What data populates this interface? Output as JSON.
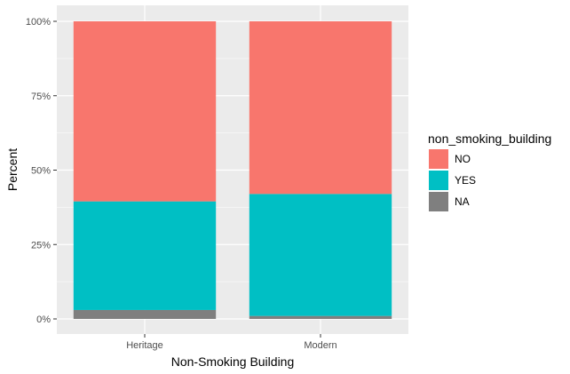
{
  "chart_data": {
    "type": "bar",
    "stacked": true,
    "categories": [
      "Heritage",
      "Modern"
    ],
    "series": [
      {
        "name": "NO",
        "color": "#F8766D",
        "values": [
          60.5,
          58.0
        ]
      },
      {
        "name": "YES",
        "color": "#00BFC4",
        "values": [
          36.5,
          41.0
        ]
      },
      {
        "name": "NA",
        "color": "#7F7F7F",
        "values": [
          3.0,
          1.0
        ]
      }
    ],
    "stack_order": [
      "NA",
      "YES",
      "NO"
    ],
    "xlabel": "Non-Smoking Building",
    "ylabel": "Percent",
    "ylim": [
      0,
      100
    ],
    "yticks": [
      0,
      25,
      50,
      75,
      100
    ],
    "ytick_labels": [
      "0%",
      "25%",
      "50%",
      "75%",
      "100%"
    ],
    "grid": true,
    "panel_background": "#EBEBEB",
    "legend": {
      "title": "non_smoking_building",
      "placement": "right",
      "entries": [
        "NO",
        "YES",
        "NA"
      ]
    }
  }
}
